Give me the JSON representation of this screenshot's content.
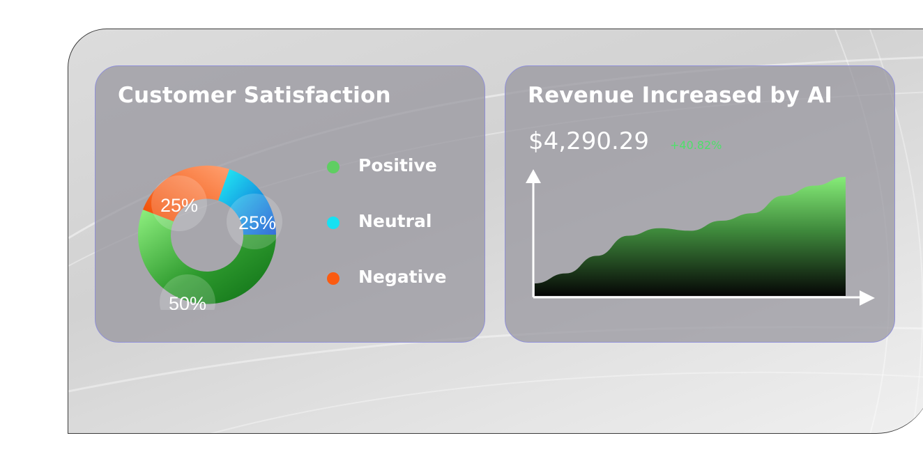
{
  "colors": {
    "positive": "#5fce62",
    "neutral": "#17e1f2",
    "negative": "#fb5b11",
    "change": "#4ee06a",
    "card_border": "#8f8fd8"
  },
  "satisfaction": {
    "title": "Customer Satisfaction",
    "legend": [
      {
        "label": "Positive",
        "color": "#5fce62"
      },
      {
        "label": "Neutral",
        "color": "#17e1f2"
      },
      {
        "label": "Negative",
        "color": "#fb5b11"
      }
    ],
    "labels": {
      "negative": "25%",
      "neutral": "25%",
      "positive": "50%"
    }
  },
  "revenue": {
    "title": "Revenue Increased by AI",
    "amount": "$4,290.29",
    "change": "+40.82%"
  },
  "chart_data": [
    {
      "type": "pie",
      "title": "Customer Satisfaction",
      "categories": [
        "Positive",
        "Neutral",
        "Negative"
      ],
      "values": [
        50,
        25,
        25
      ],
      "data_labels": [
        "50%",
        "25%",
        "25%"
      ],
      "legend_placement": "right"
    },
    {
      "type": "area",
      "title": "Revenue Increased by AI",
      "x": [
        0,
        1,
        2,
        3,
        4,
        5,
        6,
        7,
        8,
        9,
        10
      ],
      "values": [
        10,
        18,
        32,
        48,
        54,
        52,
        60,
        66,
        80,
        88,
        95
      ],
      "ylim": [
        0,
        100
      ],
      "grid": false,
      "axis_ticks": false
    }
  ]
}
